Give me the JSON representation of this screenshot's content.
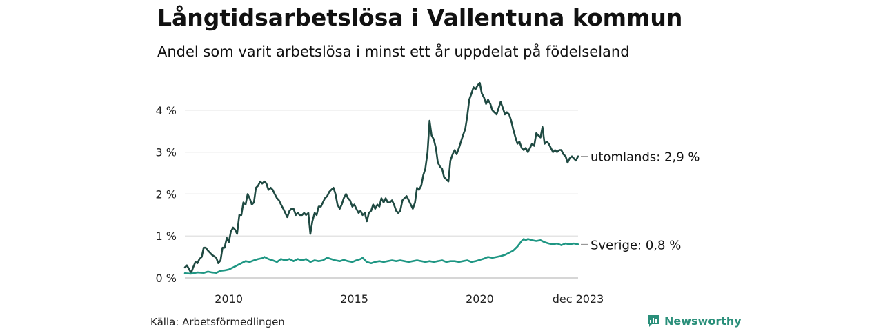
{
  "chart_data": {
    "type": "line",
    "title": "Långtidsarbetslösa i Vallentuna kommun",
    "subtitle": "Andel som varit arbetslösa i minst ett år uppdelat på födelseland",
    "xlabel": "",
    "ylabel": "",
    "y_unit": "%",
    "ylim": [
      0,
      4.7
    ],
    "y_ticks": [
      0,
      1,
      2,
      3,
      4
    ],
    "y_tick_labels": [
      "0 %",
      "1 %",
      "2 %",
      "3 %",
      "4 %"
    ],
    "x_range": [
      2008.25,
      2023.917
    ],
    "x_ticks": [
      2010,
      2015,
      2020,
      2023.917
    ],
    "x_tick_labels": [
      "2010",
      "2015",
      "2020",
      "dec 2023"
    ],
    "grid": true,
    "series": [
      {
        "name": "utomlands",
        "label": "utomlands: 2,9 %",
        "color": "#1f4a42",
        "points": [
          [
            2008.25,
            0.25
          ],
          [
            2008.33,
            0.3
          ],
          [
            2008.5,
            0.12
          ],
          [
            2008.58,
            0.25
          ],
          [
            2008.67,
            0.38
          ],
          [
            2008.75,
            0.35
          ],
          [
            2008.83,
            0.45
          ],
          [
            2008.92,
            0.5
          ],
          [
            2009.0,
            0.72
          ],
          [
            2009.08,
            0.72
          ],
          [
            2009.17,
            0.65
          ],
          [
            2009.25,
            0.6
          ],
          [
            2009.33,
            0.55
          ],
          [
            2009.5,
            0.48
          ],
          [
            2009.58,
            0.35
          ],
          [
            2009.67,
            0.42
          ],
          [
            2009.75,
            0.72
          ],
          [
            2009.83,
            0.72
          ],
          [
            2009.92,
            0.95
          ],
          [
            2010.0,
            0.85
          ],
          [
            2010.08,
            1.1
          ],
          [
            2010.17,
            1.2
          ],
          [
            2010.25,
            1.15
          ],
          [
            2010.33,
            1.05
          ],
          [
            2010.42,
            1.5
          ],
          [
            2010.5,
            1.5
          ],
          [
            2010.58,
            1.8
          ],
          [
            2010.67,
            1.75
          ],
          [
            2010.75,
            2.0
          ],
          [
            2010.83,
            1.9
          ],
          [
            2010.92,
            1.75
          ],
          [
            2011.0,
            1.8
          ],
          [
            2011.08,
            2.15
          ],
          [
            2011.17,
            2.2
          ],
          [
            2011.25,
            2.3
          ],
          [
            2011.33,
            2.25
          ],
          [
            2011.42,
            2.3
          ],
          [
            2011.5,
            2.25
          ],
          [
            2011.58,
            2.1
          ],
          [
            2011.67,
            2.15
          ],
          [
            2011.75,
            2.1
          ],
          [
            2011.83,
            2.0
          ],
          [
            2011.92,
            1.9
          ],
          [
            2012.0,
            1.85
          ],
          [
            2012.08,
            1.75
          ],
          [
            2012.17,
            1.65
          ],
          [
            2012.25,
            1.55
          ],
          [
            2012.33,
            1.45
          ],
          [
            2012.42,
            1.6
          ],
          [
            2012.5,
            1.65
          ],
          [
            2012.58,
            1.65
          ],
          [
            2012.67,
            1.5
          ],
          [
            2012.75,
            1.55
          ],
          [
            2012.83,
            1.5
          ],
          [
            2012.92,
            1.5
          ],
          [
            2013.0,
            1.55
          ],
          [
            2013.08,
            1.5
          ],
          [
            2013.17,
            1.55
          ],
          [
            2013.25,
            1.05
          ],
          [
            2013.33,
            1.35
          ],
          [
            2013.42,
            1.55
          ],
          [
            2013.5,
            1.5
          ],
          [
            2013.58,
            1.7
          ],
          [
            2013.67,
            1.7
          ],
          [
            2013.75,
            1.8
          ],
          [
            2013.83,
            1.9
          ],
          [
            2013.92,
            1.95
          ],
          [
            2014.0,
            2.05
          ],
          [
            2014.08,
            2.1
          ],
          [
            2014.17,
            2.15
          ],
          [
            2014.25,
            2.0
          ],
          [
            2014.33,
            1.75
          ],
          [
            2014.42,
            1.65
          ],
          [
            2014.5,
            1.75
          ],
          [
            2014.58,
            1.9
          ],
          [
            2014.67,
            2.0
          ],
          [
            2014.75,
            1.9
          ],
          [
            2014.83,
            1.85
          ],
          [
            2014.92,
            1.7
          ],
          [
            2015.0,
            1.75
          ],
          [
            2015.08,
            1.65
          ],
          [
            2015.17,
            1.55
          ],
          [
            2015.25,
            1.6
          ],
          [
            2015.33,
            1.5
          ],
          [
            2015.42,
            1.55
          ],
          [
            2015.5,
            1.35
          ],
          [
            2015.58,
            1.55
          ],
          [
            2015.67,
            1.6
          ],
          [
            2015.75,
            1.75
          ],
          [
            2015.83,
            1.65
          ],
          [
            2015.92,
            1.75
          ],
          [
            2016.0,
            1.7
          ],
          [
            2016.08,
            1.9
          ],
          [
            2016.17,
            1.8
          ],
          [
            2016.25,
            1.9
          ],
          [
            2016.33,
            1.8
          ],
          [
            2016.42,
            1.8
          ],
          [
            2016.5,
            1.85
          ],
          [
            2016.58,
            1.75
          ],
          [
            2016.67,
            1.6
          ],
          [
            2016.75,
            1.55
          ],
          [
            2016.83,
            1.6
          ],
          [
            2016.92,
            1.85
          ],
          [
            2017.0,
            1.9
          ],
          [
            2017.08,
            1.95
          ],
          [
            2017.17,
            1.85
          ],
          [
            2017.25,
            1.75
          ],
          [
            2017.33,
            1.65
          ],
          [
            2017.42,
            1.8
          ],
          [
            2017.5,
            2.15
          ],
          [
            2017.58,
            2.1
          ],
          [
            2017.67,
            2.2
          ],
          [
            2017.75,
            2.45
          ],
          [
            2017.83,
            2.6
          ],
          [
            2017.92,
            3.0
          ],
          [
            2018.0,
            3.75
          ],
          [
            2018.08,
            3.4
          ],
          [
            2018.17,
            3.3
          ],
          [
            2018.25,
            3.1
          ],
          [
            2018.33,
            2.75
          ],
          [
            2018.42,
            2.65
          ],
          [
            2018.5,
            2.6
          ],
          [
            2018.58,
            2.4
          ],
          [
            2018.67,
            2.35
          ],
          [
            2018.75,
            2.3
          ],
          [
            2018.83,
            2.8
          ],
          [
            2018.92,
            2.95
          ],
          [
            2019.0,
            3.05
          ],
          [
            2019.08,
            2.95
          ],
          [
            2019.17,
            3.1
          ],
          [
            2019.25,
            3.25
          ],
          [
            2019.33,
            3.4
          ],
          [
            2019.42,
            3.55
          ],
          [
            2019.5,
            3.85
          ],
          [
            2019.58,
            4.25
          ],
          [
            2019.67,
            4.4
          ],
          [
            2019.75,
            4.55
          ],
          [
            2019.83,
            4.5
          ],
          [
            2019.92,
            4.6
          ],
          [
            2020.0,
            4.65
          ],
          [
            2020.08,
            4.4
          ],
          [
            2020.17,
            4.3
          ],
          [
            2020.25,
            4.15
          ],
          [
            2020.33,
            4.25
          ],
          [
            2020.42,
            4.15
          ],
          [
            2020.5,
            4.0
          ],
          [
            2020.58,
            3.95
          ],
          [
            2020.67,
            3.9
          ],
          [
            2020.75,
            4.05
          ],
          [
            2020.83,
            4.2
          ],
          [
            2020.92,
            4.05
          ],
          [
            2021.0,
            3.9
          ],
          [
            2021.08,
            3.95
          ],
          [
            2021.17,
            3.9
          ],
          [
            2021.25,
            3.75
          ],
          [
            2021.33,
            3.55
          ],
          [
            2021.42,
            3.35
          ],
          [
            2021.5,
            3.2
          ],
          [
            2021.58,
            3.25
          ],
          [
            2021.67,
            3.1
          ],
          [
            2021.75,
            3.05
          ],
          [
            2021.83,
            3.1
          ],
          [
            2021.92,
            3.0
          ],
          [
            2022.0,
            3.1
          ],
          [
            2022.08,
            3.2
          ],
          [
            2022.17,
            3.15
          ],
          [
            2022.25,
            3.45
          ],
          [
            2022.33,
            3.4
          ],
          [
            2022.42,
            3.35
          ],
          [
            2022.5,
            3.6
          ],
          [
            2022.58,
            3.2
          ],
          [
            2022.67,
            3.25
          ],
          [
            2022.75,
            3.2
          ],
          [
            2022.83,
            3.1
          ],
          [
            2022.92,
            3.0
          ],
          [
            2023.0,
            3.05
          ],
          [
            2023.08,
            3.0
          ],
          [
            2023.17,
            3.05
          ],
          [
            2023.25,
            3.05
          ],
          [
            2023.33,
            2.95
          ],
          [
            2023.42,
            2.9
          ],
          [
            2023.5,
            2.75
          ],
          [
            2023.58,
            2.85
          ],
          [
            2023.67,
            2.9
          ],
          [
            2023.75,
            2.85
          ],
          [
            2023.83,
            2.8
          ],
          [
            2023.917,
            2.9
          ]
        ]
      },
      {
        "name": "Sverige",
        "label": "Sverige: 0,8 %",
        "color": "#1e9683",
        "points": [
          [
            2008.25,
            0.11
          ],
          [
            2008.5,
            0.1
          ],
          [
            2008.75,
            0.13
          ],
          [
            2009.0,
            0.12
          ],
          [
            2009.17,
            0.15
          ],
          [
            2009.33,
            0.13
          ],
          [
            2009.5,
            0.12
          ],
          [
            2009.67,
            0.17
          ],
          [
            2009.83,
            0.18
          ],
          [
            2010.0,
            0.2
          ],
          [
            2010.17,
            0.25
          ],
          [
            2010.33,
            0.3
          ],
          [
            2010.5,
            0.35
          ],
          [
            2010.67,
            0.4
          ],
          [
            2010.83,
            0.38
          ],
          [
            2011.0,
            0.42
          ],
          [
            2011.17,
            0.45
          ],
          [
            2011.33,
            0.47
          ],
          [
            2011.42,
            0.5
          ],
          [
            2011.58,
            0.45
          ],
          [
            2011.75,
            0.42
          ],
          [
            2011.92,
            0.38
          ],
          [
            2012.08,
            0.45
          ],
          [
            2012.25,
            0.42
          ],
          [
            2012.42,
            0.45
          ],
          [
            2012.58,
            0.4
          ],
          [
            2012.75,
            0.45
          ],
          [
            2012.92,
            0.42
          ],
          [
            2013.08,
            0.45
          ],
          [
            2013.25,
            0.38
          ],
          [
            2013.42,
            0.42
          ],
          [
            2013.58,
            0.4
          ],
          [
            2013.75,
            0.42
          ],
          [
            2013.92,
            0.48
          ],
          [
            2014.08,
            0.45
          ],
          [
            2014.25,
            0.42
          ],
          [
            2014.42,
            0.4
          ],
          [
            2014.58,
            0.43
          ],
          [
            2014.75,
            0.4
          ],
          [
            2014.92,
            0.38
          ],
          [
            2015.08,
            0.42
          ],
          [
            2015.25,
            0.45
          ],
          [
            2015.33,
            0.48
          ],
          [
            2015.5,
            0.38
          ],
          [
            2015.67,
            0.35
          ],
          [
            2015.83,
            0.38
          ],
          [
            2016.0,
            0.4
          ],
          [
            2016.17,
            0.38
          ],
          [
            2016.33,
            0.4
          ],
          [
            2016.5,
            0.42
          ],
          [
            2016.67,
            0.4
          ],
          [
            2016.83,
            0.42
          ],
          [
            2017.0,
            0.4
          ],
          [
            2017.17,
            0.38
          ],
          [
            2017.33,
            0.4
          ],
          [
            2017.5,
            0.42
          ],
          [
            2017.67,
            0.4
          ],
          [
            2017.83,
            0.38
          ],
          [
            2018.0,
            0.4
          ],
          [
            2018.17,
            0.38
          ],
          [
            2018.33,
            0.4
          ],
          [
            2018.5,
            0.42
          ],
          [
            2018.67,
            0.38
          ],
          [
            2018.83,
            0.4
          ],
          [
            2019.0,
            0.4
          ],
          [
            2019.17,
            0.38
          ],
          [
            2019.33,
            0.4
          ],
          [
            2019.5,
            0.42
          ],
          [
            2019.67,
            0.38
          ],
          [
            2019.83,
            0.4
          ],
          [
            2020.0,
            0.43
          ],
          [
            2020.17,
            0.46
          ],
          [
            2020.33,
            0.5
          ],
          [
            2020.5,
            0.48
          ],
          [
            2020.67,
            0.5
          ],
          [
            2020.83,
            0.52
          ],
          [
            2021.0,
            0.55
          ],
          [
            2021.17,
            0.6
          ],
          [
            2021.33,
            0.65
          ],
          [
            2021.5,
            0.75
          ],
          [
            2021.67,
            0.88
          ],
          [
            2021.75,
            0.93
          ],
          [
            2021.83,
            0.9
          ],
          [
            2021.92,
            0.93
          ],
          [
            2022.08,
            0.9
          ],
          [
            2022.25,
            0.88
          ],
          [
            2022.42,
            0.9
          ],
          [
            2022.58,
            0.85
          ],
          [
            2022.75,
            0.82
          ],
          [
            2022.92,
            0.8
          ],
          [
            2023.08,
            0.82
          ],
          [
            2023.25,
            0.78
          ],
          [
            2023.42,
            0.82
          ],
          [
            2023.58,
            0.8
          ],
          [
            2023.75,
            0.82
          ],
          [
            2023.917,
            0.8
          ]
        ]
      }
    ]
  },
  "source": "Källa: Arbetsförmedlingen",
  "brand": {
    "name": "Newsworthy",
    "icon": "newsworthy-logo-icon",
    "color": "#2a8f7a"
  }
}
